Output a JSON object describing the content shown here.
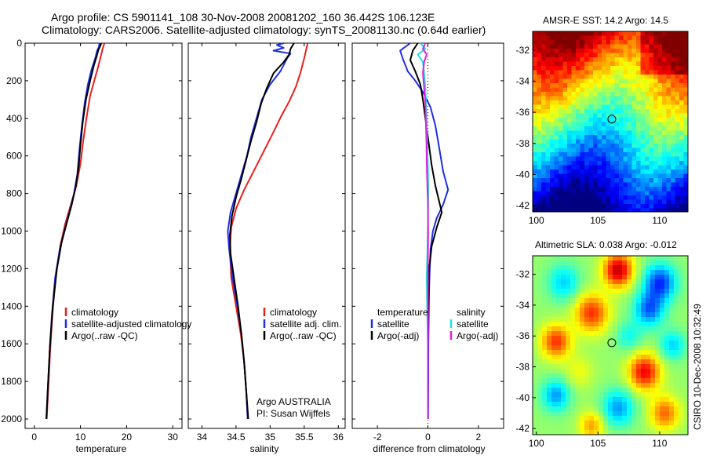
{
  "header": {
    "title_line1": "Argo profile: CS 5901141_108 30-Nov-2008 20081202_160 36.442S 106.123E",
    "title_line2": "Climatology: CARS2006. Satellite-adjusted climatology: synTS_20081130.nc (0.64d earlier)"
  },
  "side_stamp": "CSIRO 10-Dec-2008 10:32:49",
  "colors": {
    "climatology": "#e8201c",
    "satellite": "#1f2fe0",
    "argo": "#000000",
    "argo_adj": "#e020e0",
    "satellite_diff_salinity": "#20e0e0"
  },
  "chart_data": [
    {
      "type": "line",
      "id": "temperature-profile",
      "xlabel": "temperature",
      "ylabel": "",
      "xlim": [
        -2,
        32
      ],
      "ylim": [
        2050,
        0
      ],
      "xticks": [
        0,
        10,
        20,
        30
      ],
      "yticks": [
        0,
        200,
        400,
        600,
        800,
        1000,
        1200,
        1400,
        1600,
        1800,
        2000
      ],
      "legend": [
        "climatology",
        "satellite-adjusted climatology",
        "Argo(..raw -QC)"
      ],
      "legend_position": "lower-middle",
      "series": [
        {
          "name": "climatology",
          "color": "#e8201c",
          "points": [
            [
              15.2,
              0
            ],
            [
              14.8,
              30
            ],
            [
              14.5,
              60
            ],
            [
              13.9,
              120
            ],
            [
              13.0,
              200
            ],
            [
              12.1,
              280
            ],
            [
              11.3,
              400
            ],
            [
              10.6,
              520
            ],
            [
              10.0,
              640
            ],
            [
              9.1,
              760
            ],
            [
              7.9,
              860
            ],
            [
              6.7,
              960
            ],
            [
              5.6,
              1080
            ],
            [
              4.6,
              1250
            ],
            [
              3.9,
              1450
            ],
            [
              3.4,
              1650
            ],
            [
              3.0,
              1850
            ],
            [
              2.7,
              2000
            ]
          ]
        },
        {
          "name": "satellite-adjusted climatology",
          "color": "#1f2fe0",
          "points": [
            [
              14.1,
              0
            ],
            [
              14.0,
              20
            ],
            [
              13.6,
              40
            ],
            [
              13.2,
              80
            ],
            [
              12.4,
              140
            ],
            [
              11.6,
              220
            ],
            [
              10.9,
              320
            ],
            [
              10.3,
              440
            ],
            [
              9.8,
              560
            ],
            [
              9.3,
              700
            ],
            [
              8.6,
              800
            ],
            [
              7.6,
              900
            ],
            [
              6.5,
              1000
            ],
            [
              5.5,
              1100
            ],
            [
              4.5,
              1250
            ],
            [
              3.8,
              1450
            ],
            [
              3.3,
              1650
            ],
            [
              2.9,
              1850
            ],
            [
              2.6,
              2000
            ]
          ]
        },
        {
          "name": "Argo(..raw -QC)",
          "color": "#000000",
          "points": [
            [
              14.5,
              0
            ],
            [
              14.3,
              15
            ],
            [
              13.9,
              35
            ],
            [
              13.5,
              70
            ],
            [
              12.9,
              120
            ],
            [
              12.1,
              200
            ],
            [
              11.2,
              300
            ],
            [
              10.5,
              420
            ],
            [
              10.0,
              540
            ],
            [
              9.6,
              660
            ],
            [
              9.0,
              760
            ],
            [
              8.1,
              860
            ],
            [
              7.0,
              960
            ],
            [
              5.9,
              1060
            ],
            [
              4.9,
              1200
            ],
            [
              4.0,
              1400
            ],
            [
              3.4,
              1600
            ],
            [
              3.0,
              1800
            ],
            [
              2.6,
              2000
            ]
          ]
        }
      ]
    },
    {
      "type": "line",
      "id": "salinity-profile",
      "xlabel": "salinity",
      "xlim": [
        33.8,
        36.1
      ],
      "ylim": [
        2050,
        0
      ],
      "xticks": [
        34,
        34.5,
        35,
        35.5,
        36
      ],
      "legend": [
        "climatology",
        "satellite adj. clim.",
        "Argo(..raw -QC)"
      ],
      "legend_position": "lower-middle",
      "annotation": [
        "Argo AUSTRALIA",
        "PI: Susan Wijffels"
      ],
      "series": [
        {
          "name": "climatology",
          "color": "#e8201c",
          "points": [
            [
              35.55,
              0
            ],
            [
              35.5,
              80
            ],
            [
              35.45,
              150
            ],
            [
              35.38,
              230
            ],
            [
              35.28,
              310
            ],
            [
              35.16,
              390
            ],
            [
              35.04,
              480
            ],
            [
              34.9,
              580
            ],
            [
              34.76,
              680
            ],
            [
              34.62,
              780
            ],
            [
              34.5,
              880
            ],
            [
              34.43,
              980
            ],
            [
              34.41,
              1100
            ],
            [
              34.43,
              1250
            ],
            [
              34.5,
              1400
            ],
            [
              34.57,
              1550
            ],
            [
              34.62,
              1700
            ],
            [
              34.65,
              1850
            ],
            [
              34.67,
              2000
            ]
          ]
        },
        {
          "name": "satellite adj. clim.",
          "color": "#1f2fe0",
          "points": [
            [
              35.2,
              0
            ],
            [
              35.1,
              10
            ],
            [
              35.2,
              25
            ],
            [
              35.05,
              40
            ],
            [
              35.3,
              55
            ],
            [
              35.25,
              80
            ],
            [
              35.15,
              150
            ],
            [
              35.0,
              220
            ],
            [
              34.88,
              300
            ],
            [
              34.8,
              400
            ],
            [
              34.72,
              500
            ],
            [
              34.66,
              600
            ],
            [
              34.58,
              700
            ],
            [
              34.5,
              800
            ],
            [
              34.42,
              900
            ],
            [
              34.38,
              1000
            ],
            [
              34.4,
              1100
            ],
            [
              34.45,
              1250
            ],
            [
              34.52,
              1400
            ],
            [
              34.58,
              1550
            ],
            [
              34.62,
              1700
            ],
            [
              34.65,
              1850
            ],
            [
              34.67,
              2000
            ]
          ]
        },
        {
          "name": "Argo(..raw -QC)",
          "color": "#000000",
          "points": [
            [
              35.35,
              0
            ],
            [
              35.3,
              30
            ],
            [
              35.28,
              60
            ],
            [
              35.2,
              100
            ],
            [
              35.05,
              160
            ],
            [
              34.95,
              240
            ],
            [
              34.87,
              320
            ],
            [
              34.8,
              420
            ],
            [
              34.72,
              520
            ],
            [
              34.65,
              620
            ],
            [
              34.58,
              720
            ],
            [
              34.5,
              820
            ],
            [
              34.44,
              920
            ],
            [
              34.41,
              1020
            ],
            [
              34.42,
              1120
            ],
            [
              34.47,
              1250
            ],
            [
              34.53,
              1400
            ],
            [
              34.58,
              1550
            ],
            [
              34.62,
              1700
            ],
            [
              34.65,
              1850
            ],
            [
              34.68,
              2000
            ]
          ]
        }
      ]
    },
    {
      "type": "line",
      "id": "difference-profile",
      "xlabel": "difference from climatology",
      "xlim": [
        -3,
        3
      ],
      "ylim": [
        2050,
        0
      ],
      "xticks": [
        -2,
        0,
        2
      ],
      "legend": [
        "temperature",
        "satellite",
        "Argo(-adj)",
        "salinity",
        "satellite",
        "Argo(-adj)"
      ],
      "legend_position": "lower-middle",
      "series": [
        {
          "name": "temperature satellite",
          "color": "#1f2fe0",
          "points": [
            [
              -0.7,
              0
            ],
            [
              -1.1,
              40
            ],
            [
              -1.0,
              80
            ],
            [
              -0.8,
              150
            ],
            [
              -0.5,
              200
            ],
            [
              -0.2,
              260
            ],
            [
              0.1,
              340
            ],
            [
              0.3,
              440
            ],
            [
              0.45,
              560
            ],
            [
              0.6,
              680
            ],
            [
              0.8,
              780
            ],
            [
              0.6,
              860
            ],
            [
              0.35,
              930
            ],
            [
              0.2,
              1000
            ],
            [
              0.1,
              1100
            ],
            [
              0.05,
              1300
            ],
            [
              0.02,
              1600
            ],
            [
              0.01,
              2000
            ]
          ]
        },
        {
          "name": "temperature Argo(-adj)",
          "color": "#000000",
          "points": [
            [
              -0.4,
              0
            ],
            [
              -0.6,
              40
            ],
            [
              -0.7,
              90
            ],
            [
              -0.5,
              150
            ],
            [
              -0.3,
              220
            ],
            [
              -0.2,
              300
            ],
            [
              -0.1,
              400
            ],
            [
              0.0,
              500
            ],
            [
              0.15,
              650
            ],
            [
              0.3,
              760
            ],
            [
              0.55,
              900
            ],
            [
              0.35,
              980
            ],
            [
              0.15,
              1080
            ],
            [
              0.05,
              1200
            ],
            [
              0.0,
              1500
            ],
            [
              0.0,
              2000
            ]
          ]
        },
        {
          "name": "salinity satellite",
          "color": "#20e0e0",
          "points": [
            [
              -0.3,
              0
            ],
            [
              -0.1,
              30
            ],
            [
              -0.4,
              60
            ],
            [
              -0.2,
              100
            ],
            [
              -0.15,
              160
            ],
            [
              -0.1,
              240
            ],
            [
              -0.08,
              320
            ],
            [
              -0.05,
              420
            ],
            [
              -0.03,
              520
            ],
            [
              0.0,
              650
            ],
            [
              0.02,
              800
            ],
            [
              0.0,
              950
            ],
            [
              -0.02,
              1100
            ],
            [
              -0.05,
              1250
            ],
            [
              -0.03,
              1400
            ],
            [
              0.0,
              1600
            ],
            [
              0.0,
              2000
            ]
          ]
        },
        {
          "name": "salinity Argo(-adj)",
          "color": "#e020e0",
          "points": [
            [
              -0.1,
              0
            ],
            [
              -0.2,
              30
            ],
            [
              -0.05,
              60
            ],
            [
              -0.15,
              100
            ],
            [
              -0.2,
              160
            ],
            [
              -0.15,
              240
            ],
            [
              -0.1,
              320
            ],
            [
              -0.08,
              420
            ],
            [
              -0.06,
              520
            ],
            [
              -0.05,
              620
            ],
            [
              -0.03,
              720
            ],
            [
              0.0,
              850
            ],
            [
              0.01,
              1000
            ],
            [
              0.0,
              1200
            ],
            [
              0.0,
              2000
            ]
          ]
        }
      ]
    },
    {
      "type": "heatmap",
      "id": "amsre-sst",
      "title": "AMSR-E SST: 14.2 Argo: 14.5",
      "xlim": [
        99.7,
        112.3
      ],
      "ylim": [
        -42.4,
        -30.8
      ],
      "xticks": [
        100,
        105,
        110
      ],
      "yticks": [
        -32,
        -34,
        -36,
        -38,
        -40,
        -42
      ],
      "marker": {
        "lon": 106.123,
        "lat": -36.442
      }
    },
    {
      "type": "heatmap",
      "id": "altimetric-sla",
      "title": "Altimetric SLA: 0.038 Argo: -0.012",
      "xlim": [
        99.7,
        112.3
      ],
      "ylim": [
        -42.4,
        -30.8
      ],
      "xticks": [
        100,
        105,
        110
      ],
      "yticks": [
        -32,
        -34,
        -36,
        -38,
        -40,
        -42
      ],
      "marker": {
        "lon": 106.123,
        "lat": -36.442
      }
    }
  ]
}
